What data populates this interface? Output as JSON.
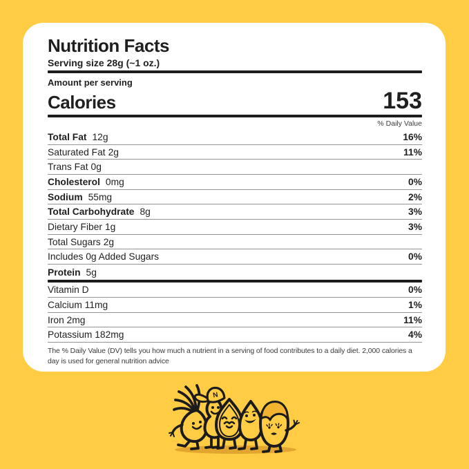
{
  "page": {
    "background_color": "#FFCC43"
  },
  "label": {
    "title": "Nutrition Facts",
    "serving_size": "Serving size 28g (~1 oz.)",
    "amount_per_serving": "Amount per serving",
    "calories_label": "Calories",
    "calories_value": "153",
    "daily_value_header": "% Daily Value",
    "nutrient_rows": [
      {
        "label": "Total Fat",
        "amount": "12g",
        "dv": "16%",
        "bold": true
      },
      {
        "label": "Saturated Fat",
        "amount": "2g",
        "dv": "11%",
        "bold": false
      },
      {
        "label": "Trans Fat",
        "amount": "0g",
        "dv": "",
        "bold": false
      },
      {
        "label": "Cholesterol",
        "amount": "0mg",
        "dv": "0%",
        "bold": true
      },
      {
        "label": "Sodium",
        "amount": "55mg",
        "dv": "2%",
        "bold": true
      },
      {
        "label": "Total Carbohydrate",
        "amount": "8g",
        "dv": "3%",
        "bold": true
      },
      {
        "label": "Dietary Fiber",
        "amount": "1g",
        "dv": "3%",
        "bold": false
      },
      {
        "label": "Total Sugars",
        "amount": "2g",
        "dv": "",
        "bold": false
      },
      {
        "label": "Includes 0g Added Sugars",
        "amount": "",
        "dv": "0%",
        "bold": false
      },
      {
        "label": "Protein",
        "amount": "5g",
        "dv": "",
        "bold": true,
        "thick_after": true
      }
    ],
    "vitamin_rows": [
      {
        "label": "Vitamin D",
        "dv": "0%"
      },
      {
        "label": "Calcium 11mg",
        "dv": "1%"
      },
      {
        "label": "Iron 2mg",
        "dv": "11%"
      },
      {
        "label": "Potassium 182mg",
        "dv": "4%"
      }
    ],
    "footnote": "The % Daily Value (DV) tells you how much a nutrient in a serving of food contributes to a daily diet. 2,000 calories a day is used for general nutrition advice"
  },
  "illustration": {
    "name": "nut-characters-doodle",
    "cap_letter": "N",
    "outline_color": "#1b1b1b",
    "body_color": "#FFCC43",
    "hair_color": "#F2B42F",
    "shadow_color": "#E2A52F"
  }
}
